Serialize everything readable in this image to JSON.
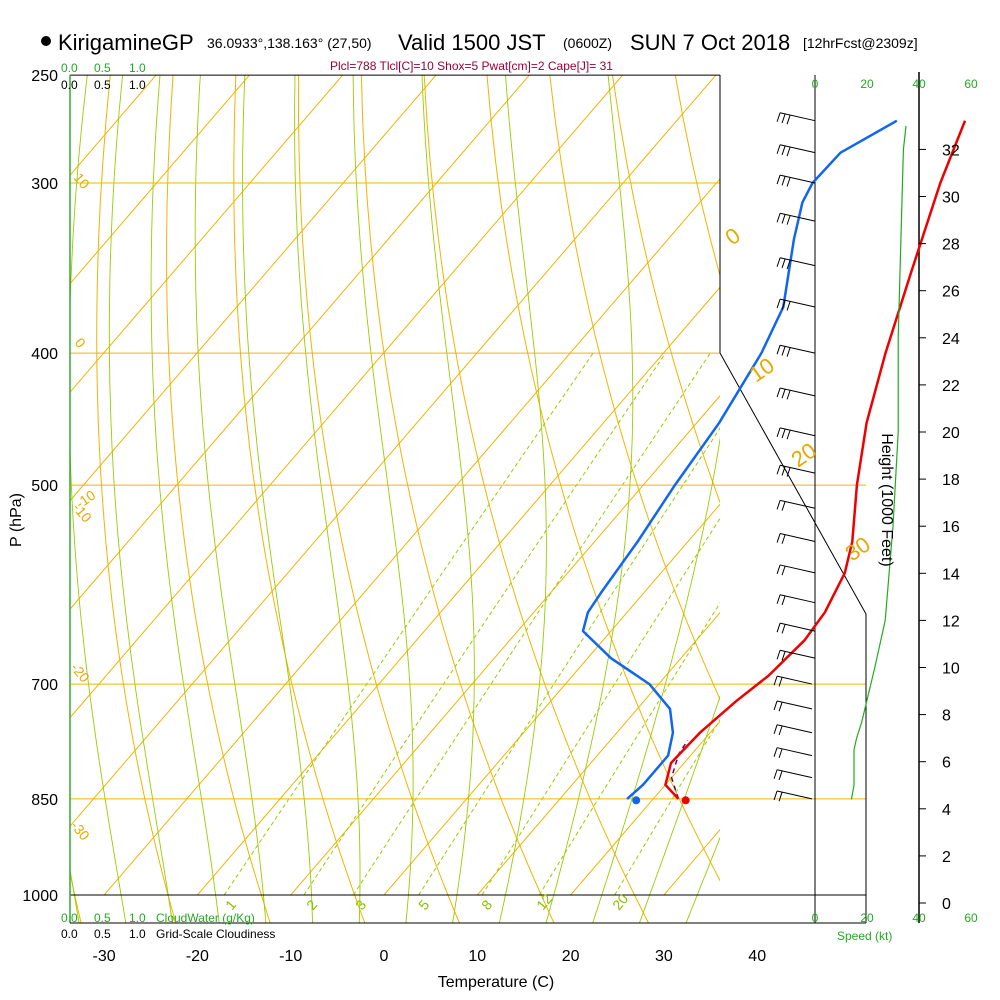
{
  "header": {
    "station": "KirigamineGP",
    "coords": "36.0933°,138.163° (27,50)",
    "valid_prefix": "Valid 1500 JST",
    "valid_utc": "(0600Z)",
    "valid_date": "SUN 7 Oct 2018",
    "fcst": "[12hrFcst@2309z]",
    "params": "Plcl=788 Tlcl[C]=10 Shox=5 Pwat[cm]=2 Cape[J]= 31"
  },
  "labels": {
    "cloudwater_scale": [
      "0.0",
      "0.5",
      "1.0"
    ],
    "cloudiness_scale": [
      "0.0",
      "0.5",
      "1.0"
    ],
    "cloudwater_title": "CloudWater (g/Kg)",
    "cloudiness_title": "Grid-Scale Cloudiness",
    "speed_title": "Speed (kt)"
  },
  "colors": {
    "temperature": "#ee0000",
    "dewpoint": "#1166ee",
    "isotherm": "#f0b400",
    "dry_adiabat": "#f0b400",
    "moist_adiabat": "#99cc00",
    "mixing_ratio": "#99cc00",
    "wind_speed": "#22aa22",
    "parcel": "#660066"
  },
  "chart_data": {
    "type": "skew-t",
    "xlabel": "Temperature (C)",
    "ylabel": "P (hPa)",
    "y2label": "Height (1000 Feet)",
    "x_ticks": [
      -30,
      -20,
      -10,
      0,
      10,
      20,
      30,
      40
    ],
    "p_ticks": [
      250,
      300,
      400,
      500,
      700,
      850,
      1000
    ],
    "p_range": [
      1000,
      250
    ],
    "height_ticks": [
      0,
      2,
      4,
      6,
      8,
      10,
      12,
      14,
      16,
      18,
      20,
      22,
      24,
      26,
      28,
      30,
      32
    ],
    "speed_ticks": [
      0,
      20,
      40,
      60
    ],
    "isotherm_labels": [
      -10,
      0,
      10,
      20,
      30
    ],
    "dry_adiabat_labels": [
      10,
      0,
      -10,
      -20,
      -30
    ],
    "mixing_ratio_labels": [
      1,
      2,
      3,
      5,
      8,
      12,
      20
    ],
    "surface_pressure": 850,
    "temperature": [
      {
        "p": 850,
        "t": 22.7
      },
      {
        "p": 830,
        "t": 20.0
      },
      {
        "p": 800,
        "t": 18.6
      },
      {
        "p": 760,
        "t": 18.9
      },
      {
        "p": 720,
        "t": 19.9
      },
      {
        "p": 690,
        "t": 21.0
      },
      {
        "p": 650,
        "t": 21.6
      },
      {
        "p": 620,
        "t": 21.2
      },
      {
        "p": 580,
        "t": 19.7
      },
      {
        "p": 550,
        "t": 17.6
      },
      {
        "p": 500,
        "t": 12.9
      },
      {
        "p": 450,
        "t": 8.2
      },
      {
        "p": 400,
        "t": 3.8
      },
      {
        "p": 350,
        "t": -0.8
      },
      {
        "p": 300,
        "t": -6.0
      },
      {
        "p": 270,
        "t": -9.1
      }
    ],
    "dewpoint": [
      {
        "p": 850,
        "t": 17.2
      },
      {
        "p": 830,
        "t": 17.6
      },
      {
        "p": 790,
        "t": 17.6
      },
      {
        "p": 760,
        "t": 16.0
      },
      {
        "p": 730,
        "t": 13.5
      },
      {
        "p": 700,
        "t": 9.0
      },
      {
        "p": 670,
        "t": 2.5
      },
      {
        "p": 640,
        "t": -3.0
      },
      {
        "p": 620,
        "t": -4.2
      },
      {
        "p": 600,
        "t": -4.6
      },
      {
        "p": 550,
        "t": -5.4
      },
      {
        "p": 500,
        "t": -6.6
      },
      {
        "p": 450,
        "t": -7.6
      },
      {
        "p": 400,
        "t": -9.5
      },
      {
        "p": 370,
        "t": -11.4
      },
      {
        "p": 330,
        "t": -16.5
      },
      {
        "p": 310,
        "t": -19.0
      },
      {
        "p": 300,
        "t": -19.7
      },
      {
        "p": 285,
        "t": -19.5
      },
      {
        "p": 270,
        "t": -16.4
      }
    ],
    "parcel": [
      {
        "p": 850,
        "t": 22.7
      },
      {
        "p": 820,
        "t": 20.0
      },
      {
        "p": 788,
        "t": 18.6
      },
      {
        "p": 770,
        "t": 18.3
      }
    ],
    "surface_temp": {
      "p": 852,
      "t": 23.6
    },
    "surface_dew": {
      "p": 852,
      "t": 18.3
    },
    "wind_speed_profile": [
      {
        "h": 4.4,
        "s": 14
      },
      {
        "h": 5.0,
        "s": 15
      },
      {
        "h": 6.5,
        "s": 15
      },
      {
        "h": 7.0,
        "s": 16
      },
      {
        "h": 7.7,
        "s": 18
      },
      {
        "h": 10.0,
        "s": 23
      },
      {
        "h": 12.0,
        "s": 27
      },
      {
        "h": 16.0,
        "s": 30
      },
      {
        "h": 20.0,
        "s": 32
      },
      {
        "h": 24.0,
        "s": 32
      },
      {
        "h": 28.0,
        "s": 33
      },
      {
        "h": 32.0,
        "s": 34
      },
      {
        "h": 33.0,
        "s": 35
      }
    ],
    "wind_barbs_p": [
      270,
      285,
      300,
      320,
      345,
      370,
      400,
      430,
      460,
      490,
      520,
      550,
      580,
      610,
      640,
      670,
      700,
      730,
      760,
      790,
      820,
      850
    ]
  }
}
